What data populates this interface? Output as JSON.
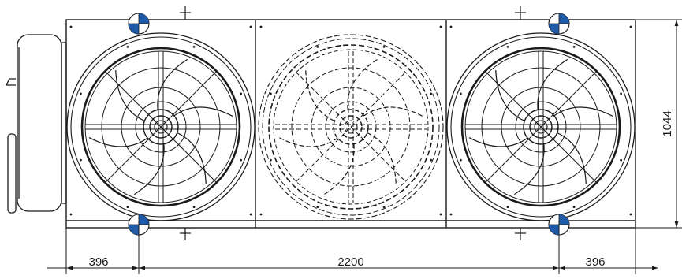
{
  "dimensions": {
    "left_offset": "396",
    "center_span": "2200",
    "right_offset": "396",
    "height": "1044"
  },
  "colors": {
    "line": "#1a1a1a",
    "lifting_marker_fill": "#1e5aa8",
    "background": "#ffffff"
  },
  "fans": [
    {
      "name": "fan-left",
      "style": "solid"
    },
    {
      "name": "fan-center",
      "style": "dashed"
    },
    {
      "name": "fan-right",
      "style": "solid"
    }
  ],
  "lifting_markers": [
    "lifting-point-top-left",
    "lifting-point-top-right",
    "lifting-point-bottom-left",
    "lifting-point-bottom-right"
  ]
}
